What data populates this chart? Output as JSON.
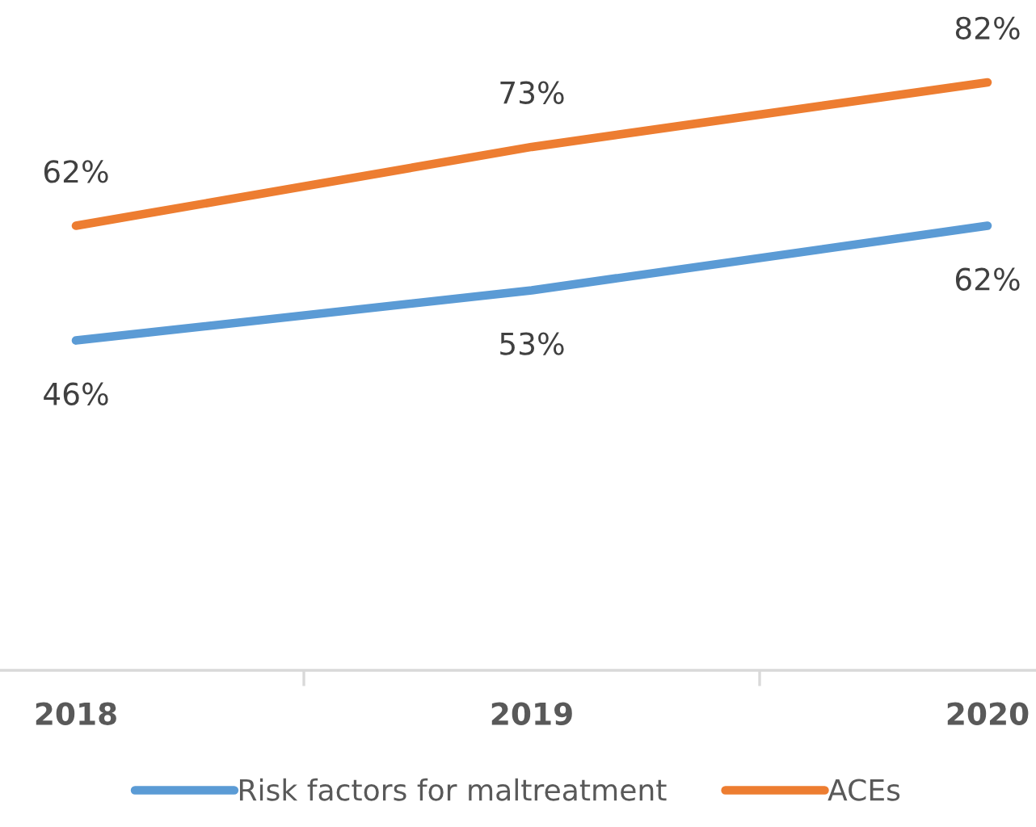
{
  "chart_data": {
    "type": "line",
    "categories": [
      "2018",
      "2019",
      "2020"
    ],
    "series": [
      {
        "name": "Risk factors for maltreatment",
        "color": "#5b9bd5",
        "values": [
          46,
          53,
          62
        ],
        "value_labels": [
          "46%",
          "53%",
          "62%"
        ]
      },
      {
        "name": "ACEs",
        "color": "#ed7d31",
        "values": [
          62,
          73,
          82
        ],
        "value_labels": [
          "62%",
          "73%",
          "82%"
        ]
      }
    ],
    "tick_labels": "x",
    "grid": false,
    "legend": "bottom",
    "marker": "none",
    "line_style": "solid"
  }
}
